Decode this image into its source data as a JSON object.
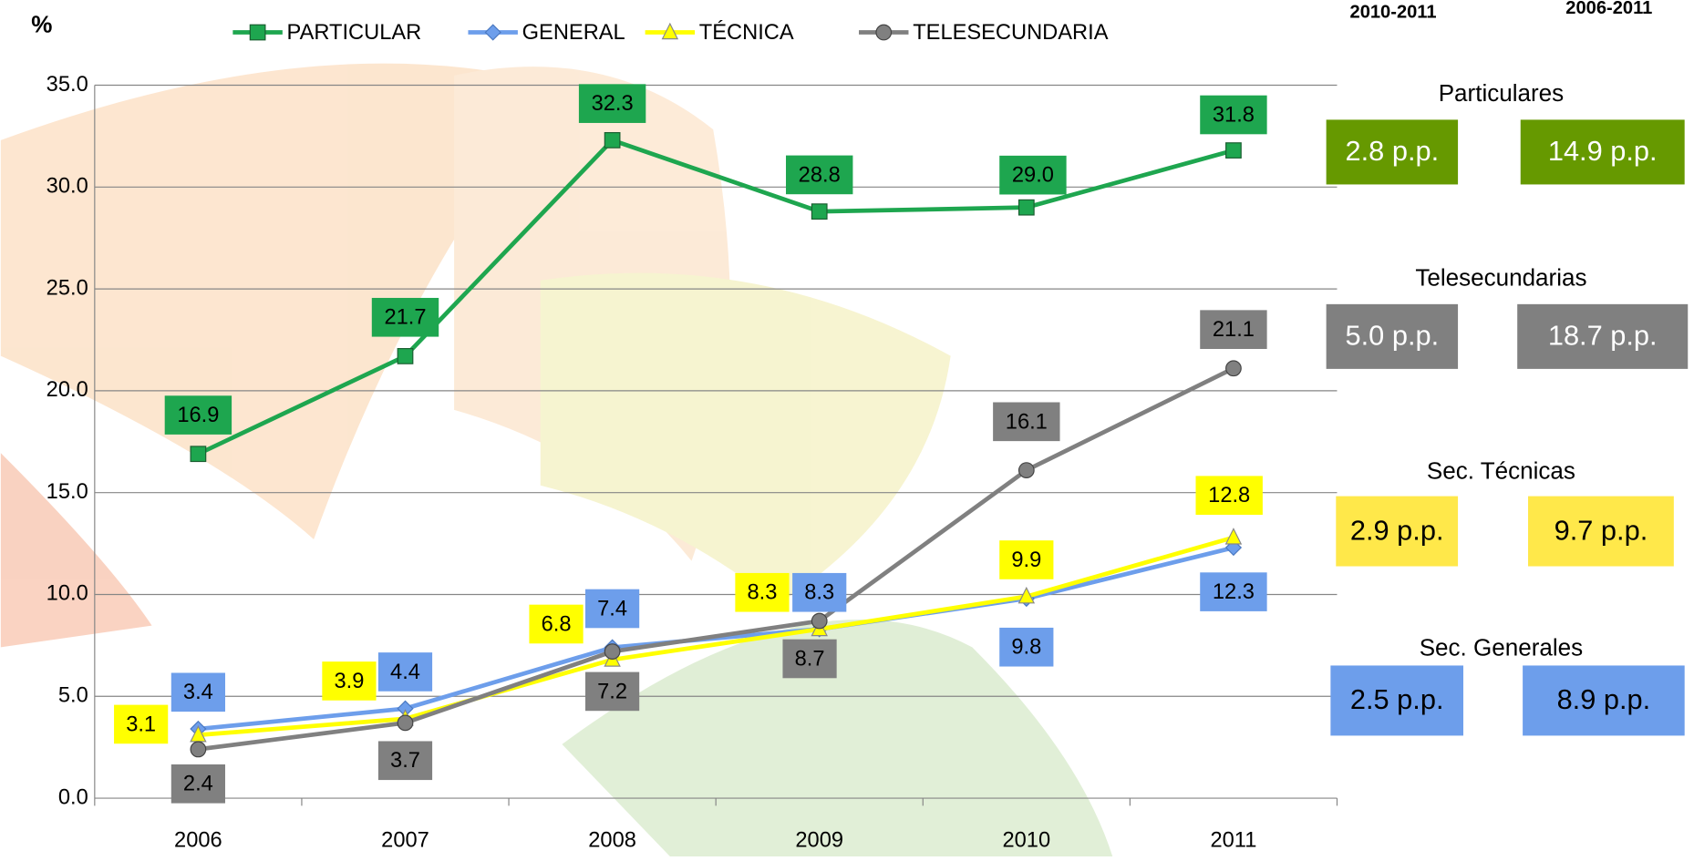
{
  "chart_data": {
    "type": "line",
    "y_label": "%",
    "categories": [
      "2006",
      "2007",
      "2008",
      "2009",
      "2010",
      "2011"
    ],
    "series": [
      {
        "name": "PARTICULAR",
        "color": "#1ea64f",
        "marker": "square",
        "values": [
          16.9,
          21.7,
          32.3,
          28.8,
          29.0,
          31.8
        ],
        "value_labels": [
          "16.9",
          "21.7",
          "32.3",
          "28.8",
          "29.0",
          "31.8"
        ]
      },
      {
        "name": "GENERAL",
        "color": "#6d9eeb",
        "marker": "diamond",
        "values": [
          3.4,
          4.4,
          7.4,
          8.3,
          9.8,
          12.3
        ],
        "value_labels": [
          "3.4",
          "4.4",
          "7.4",
          "8.3",
          "9.8",
          "12.3"
        ]
      },
      {
        "name": "TÉCNICA",
        "color": "#ffff00",
        "marker": "triangle",
        "values": [
          3.1,
          3.9,
          6.8,
          8.3,
          9.9,
          12.8
        ],
        "value_labels": [
          "3.1",
          "3.9",
          "6.8",
          "8.3",
          "9.9",
          "12.8"
        ]
      },
      {
        "name": "TELESECUNDARIA",
        "color": "#808080",
        "marker": "circle",
        "values": [
          2.4,
          3.7,
          7.2,
          8.7,
          16.1,
          21.1
        ],
        "value_labels": [
          "2.4",
          "3.7",
          "7.2",
          "8.7",
          "16.1",
          "21.1"
        ]
      }
    ],
    "ylim": [
      0,
      35
    ],
    "yticks": [
      {
        "value": 0,
        "label": "0.0"
      },
      {
        "value": 5,
        "label": "5.0"
      },
      {
        "value": 10,
        "label": "10.0"
      },
      {
        "value": 15,
        "label": "15.0"
      },
      {
        "value": 20,
        "label": "20.0"
      },
      {
        "value": 25,
        "label": "25.0"
      },
      {
        "value": 30,
        "label": "30.0"
      },
      {
        "value": 35,
        "label": "35.0"
      }
    ],
    "grid": true,
    "legend": "top"
  },
  "side_panel": {
    "headers": [
      "2010-2011",
      "2006-2011"
    ],
    "groups": [
      {
        "title": "Particulares",
        "color": "#669900",
        "values": [
          "2.8 p.p.",
          "14.9 p.p."
        ]
      },
      {
        "title": "Telesecundarias",
        "color": "#808080",
        "values": [
          "5.0 p.p.",
          "18.7 p.p."
        ]
      },
      {
        "title": "Sec. Técnicas",
        "color": "#ffe84a",
        "values": [
          "2.9 p.p.",
          "9.7 p.p."
        ]
      },
      {
        "title": "Sec. Generales",
        "color": "#6d9eeb",
        "values": [
          "2.5 p.p.",
          "8.9 p.p."
        ]
      }
    ]
  }
}
